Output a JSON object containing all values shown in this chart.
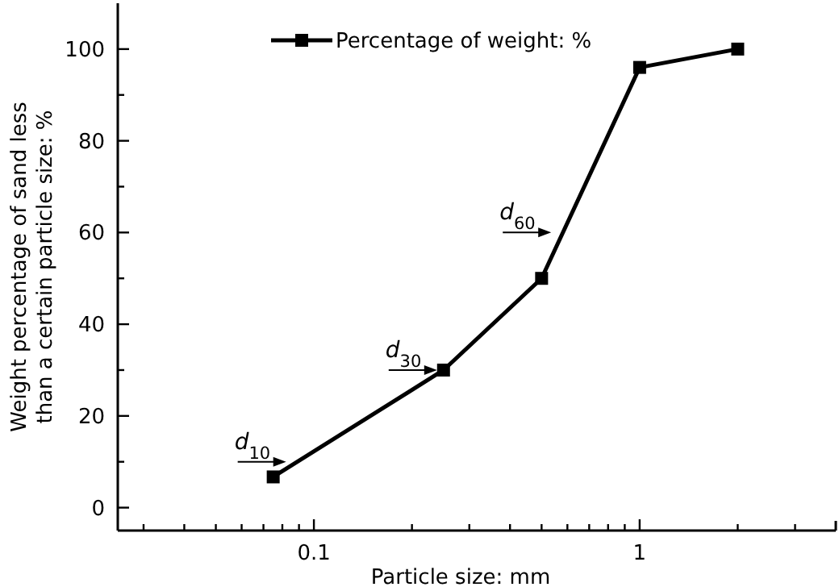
{
  "chart_data": {
    "type": "line",
    "xlabel": "Particle size: mm",
    "ylabel": "Weight percentage of sand less\nthan a certain particle size: %",
    "log": "x",
    "x": [
      0.075,
      0.25,
      0.5,
      1,
      2
    ],
    "series": [
      {
        "name": "Percentage of weight: %",
        "color": "#000000",
        "values": [
          6.7,
          30,
          50,
          96,
          100
        ]
      }
    ],
    "xlim": [
      0.025,
      4
    ],
    "xticks": [
      {
        "value": 0.03,
        "label": null
      },
      {
        "value": 0.04,
        "label": null
      },
      {
        "value": 0.05,
        "label": null
      },
      {
        "value": 0.06,
        "label": null
      },
      {
        "value": 0.07,
        "label": null
      },
      {
        "value": 0.08,
        "label": null
      },
      {
        "value": 0.09,
        "label": null
      },
      0.1,
      {
        "value": 0.2,
        "label": null
      },
      {
        "value": 0.3,
        "label": null
      },
      {
        "value": 0.4,
        "label": null
      },
      {
        "value": 0.5,
        "label": null
      },
      {
        "value": 0.6,
        "label": null
      },
      {
        "value": 0.7,
        "label": null
      },
      {
        "value": 0.8,
        "label": null
      },
      {
        "value": 0.9,
        "label": null
      },
      1,
      {
        "value": 2,
        "label": null
      },
      {
        "value": 3,
        "label": null
      }
    ],
    "ylim": [
      -5,
      110
    ],
    "yticks": [
      0,
      {
        "value": 10,
        "label": null
      },
      20,
      {
        "value": 30,
        "label": null
      },
      40,
      {
        "value": 50,
        "label": null
      },
      60,
      {
        "value": 70,
        "label": null
      },
      80,
      {
        "value": 90,
        "label": null
      },
      100
    ],
    "annotations": [
      {
        "text": "d$_{10}$",
        "x": 0.086,
        "y": 10
      },
      {
        "text": "d$_{30}$",
        "x": 0.25,
        "y": 30
      },
      {
        "text": "d$_{60}$",
        "x": 0.56,
        "y": 60
      }
    ],
    "legend": "top left",
    "marker": "square",
    "line_style": "solid",
    "grid": false
  }
}
